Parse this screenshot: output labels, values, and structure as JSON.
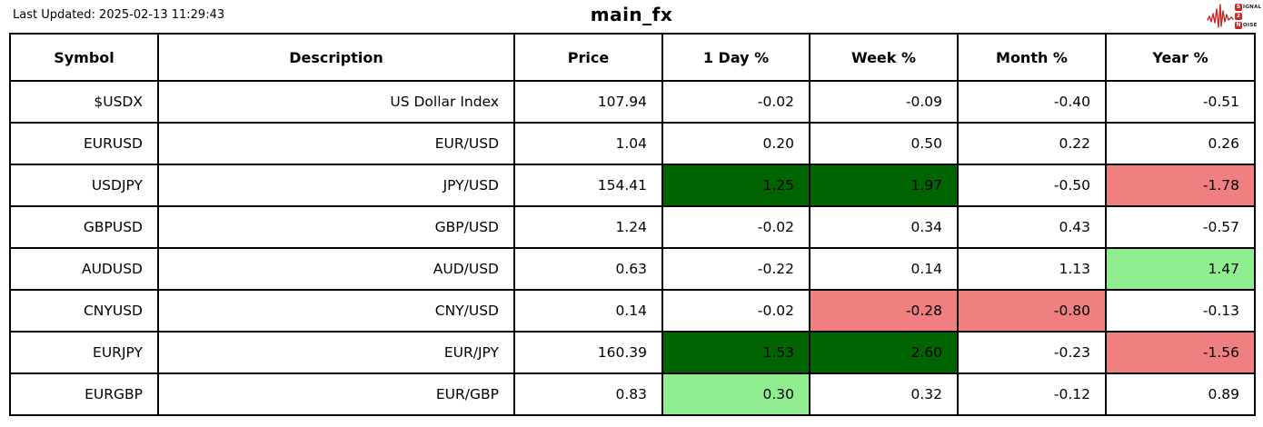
{
  "meta": {
    "last_updated": "Last Updated: 2025-02-13 11:29:43",
    "title": "main_fx"
  },
  "logo": {
    "name": "signal2noise-logo",
    "s_badge": "S",
    "signal_rest": "IGNAL",
    "two_badge": "2",
    "n_badge": "N",
    "noise_rest": "OISE",
    "accent_red": "#c62828"
  },
  "colors": {
    "white": "#ffffff",
    "darkgreen": "#006400",
    "lightgreen": "#90ee90",
    "lightcoral": "#f08080",
    "border": "#000000"
  },
  "table": {
    "headers": [
      "Symbol",
      "Description",
      "Price",
      "1 Day %",
      "Week %",
      "Month %",
      "Year %"
    ],
    "rows": [
      {
        "cells": [
          {
            "text": "$USDX",
            "bg": "white"
          },
          {
            "text": "US Dollar Index",
            "bg": "white"
          },
          {
            "text": "107.94",
            "bg": "white"
          },
          {
            "text": "-0.02",
            "bg": "white"
          },
          {
            "text": "-0.09",
            "bg": "white"
          },
          {
            "text": "-0.40",
            "bg": "white"
          },
          {
            "text": "-0.51",
            "bg": "white"
          }
        ]
      },
      {
        "cells": [
          {
            "text": "EURUSD",
            "bg": "white"
          },
          {
            "text": "EUR/USD",
            "bg": "white"
          },
          {
            "text": "1.04",
            "bg": "white"
          },
          {
            "text": "0.20",
            "bg": "white"
          },
          {
            "text": "0.50",
            "bg": "white"
          },
          {
            "text": "0.22",
            "bg": "white"
          },
          {
            "text": "0.26",
            "bg": "white"
          }
        ]
      },
      {
        "cells": [
          {
            "text": "USDJPY",
            "bg": "white"
          },
          {
            "text": "JPY/USD",
            "bg": "white"
          },
          {
            "text": "154.41",
            "bg": "white"
          },
          {
            "text": "1.25",
            "bg": "darkgreen"
          },
          {
            "text": "1.97",
            "bg": "darkgreen"
          },
          {
            "text": "-0.50",
            "bg": "white"
          },
          {
            "text": "-1.78",
            "bg": "lightcoral"
          }
        ]
      },
      {
        "cells": [
          {
            "text": "GBPUSD",
            "bg": "white"
          },
          {
            "text": "GBP/USD",
            "bg": "white"
          },
          {
            "text": "1.24",
            "bg": "white"
          },
          {
            "text": "-0.02",
            "bg": "white"
          },
          {
            "text": "0.34",
            "bg": "white"
          },
          {
            "text": "0.43",
            "bg": "white"
          },
          {
            "text": "-0.57",
            "bg": "white"
          }
        ]
      },
      {
        "cells": [
          {
            "text": "AUDUSD",
            "bg": "white"
          },
          {
            "text": "AUD/USD",
            "bg": "white"
          },
          {
            "text": "0.63",
            "bg": "white"
          },
          {
            "text": "-0.22",
            "bg": "white"
          },
          {
            "text": "0.14",
            "bg": "white"
          },
          {
            "text": "1.13",
            "bg": "white"
          },
          {
            "text": "1.47",
            "bg": "lightgreen"
          }
        ]
      },
      {
        "cells": [
          {
            "text": "CNYUSD",
            "bg": "white"
          },
          {
            "text": "CNY/USD",
            "bg": "white"
          },
          {
            "text": "0.14",
            "bg": "white"
          },
          {
            "text": "-0.02",
            "bg": "white"
          },
          {
            "text": "-0.28",
            "bg": "lightcoral"
          },
          {
            "text": "-0.80",
            "bg": "lightcoral"
          },
          {
            "text": "-0.13",
            "bg": "white"
          }
        ]
      },
      {
        "cells": [
          {
            "text": "EURJPY",
            "bg": "white"
          },
          {
            "text": "EUR/JPY",
            "bg": "white"
          },
          {
            "text": "160.39",
            "bg": "white"
          },
          {
            "text": "1.53",
            "bg": "darkgreen"
          },
          {
            "text": "2.60",
            "bg": "darkgreen"
          },
          {
            "text": "-0.23",
            "bg": "white"
          },
          {
            "text": "-1.56",
            "bg": "lightcoral"
          }
        ]
      },
      {
        "cells": [
          {
            "text": "EURGBP",
            "bg": "white"
          },
          {
            "text": "EUR/GBP",
            "bg": "white"
          },
          {
            "text": "0.83",
            "bg": "white"
          },
          {
            "text": "0.30",
            "bg": "lightgreen"
          },
          {
            "text": "0.32",
            "bg": "white"
          },
          {
            "text": "-0.12",
            "bg": "white"
          },
          {
            "text": "0.89",
            "bg": "white"
          }
        ]
      }
    ]
  },
  "chart_data": {
    "type": "table",
    "title": "main_fx",
    "last_updated": "2025-02-13 11:29:43",
    "columns": [
      "Symbol",
      "Description",
      "Price",
      "1 Day %",
      "Week %",
      "Month %",
      "Year %"
    ],
    "rows": [
      [
        "$USDX",
        "US Dollar Index",
        107.94,
        -0.02,
        -0.09,
        -0.4,
        -0.51
      ],
      [
        "EURUSD",
        "EUR/USD",
        1.04,
        0.2,
        0.5,
        0.22,
        0.26
      ],
      [
        "USDJPY",
        "JPY/USD",
        154.41,
        1.25,
        1.97,
        -0.5,
        -1.78
      ],
      [
        "GBPUSD",
        "GBP/USD",
        1.24,
        -0.02,
        0.34,
        0.43,
        -0.57
      ],
      [
        "AUDUSD",
        "AUD/USD",
        0.63,
        -0.22,
        0.14,
        1.13,
        1.47
      ],
      [
        "CNYUSD",
        "CNY/USD",
        0.14,
        -0.02,
        -0.28,
        -0.8,
        -0.13
      ],
      [
        "EURJPY",
        "EUR/JPY",
        160.39,
        1.53,
        2.6,
        -0.23,
        -1.56
      ],
      [
        "EURGBP",
        "EUR/GBP",
        0.83,
        0.3,
        0.32,
        -0.12,
        0.89
      ]
    ],
    "highlights": {
      "darkgreen_cells": [
        [
          2,
          3
        ],
        [
          2,
          4
        ],
        [
          6,
          3
        ],
        [
          6,
          4
        ]
      ],
      "lightgreen_cells": [
        [
          4,
          6
        ],
        [
          7,
          3
        ]
      ],
      "lightcoral_cells": [
        [
          2,
          6
        ],
        [
          5,
          4
        ],
        [
          5,
          5
        ],
        [
          6,
          6
        ]
      ]
    },
    "legend_position": "none",
    "grid": "full-cell-borders"
  }
}
